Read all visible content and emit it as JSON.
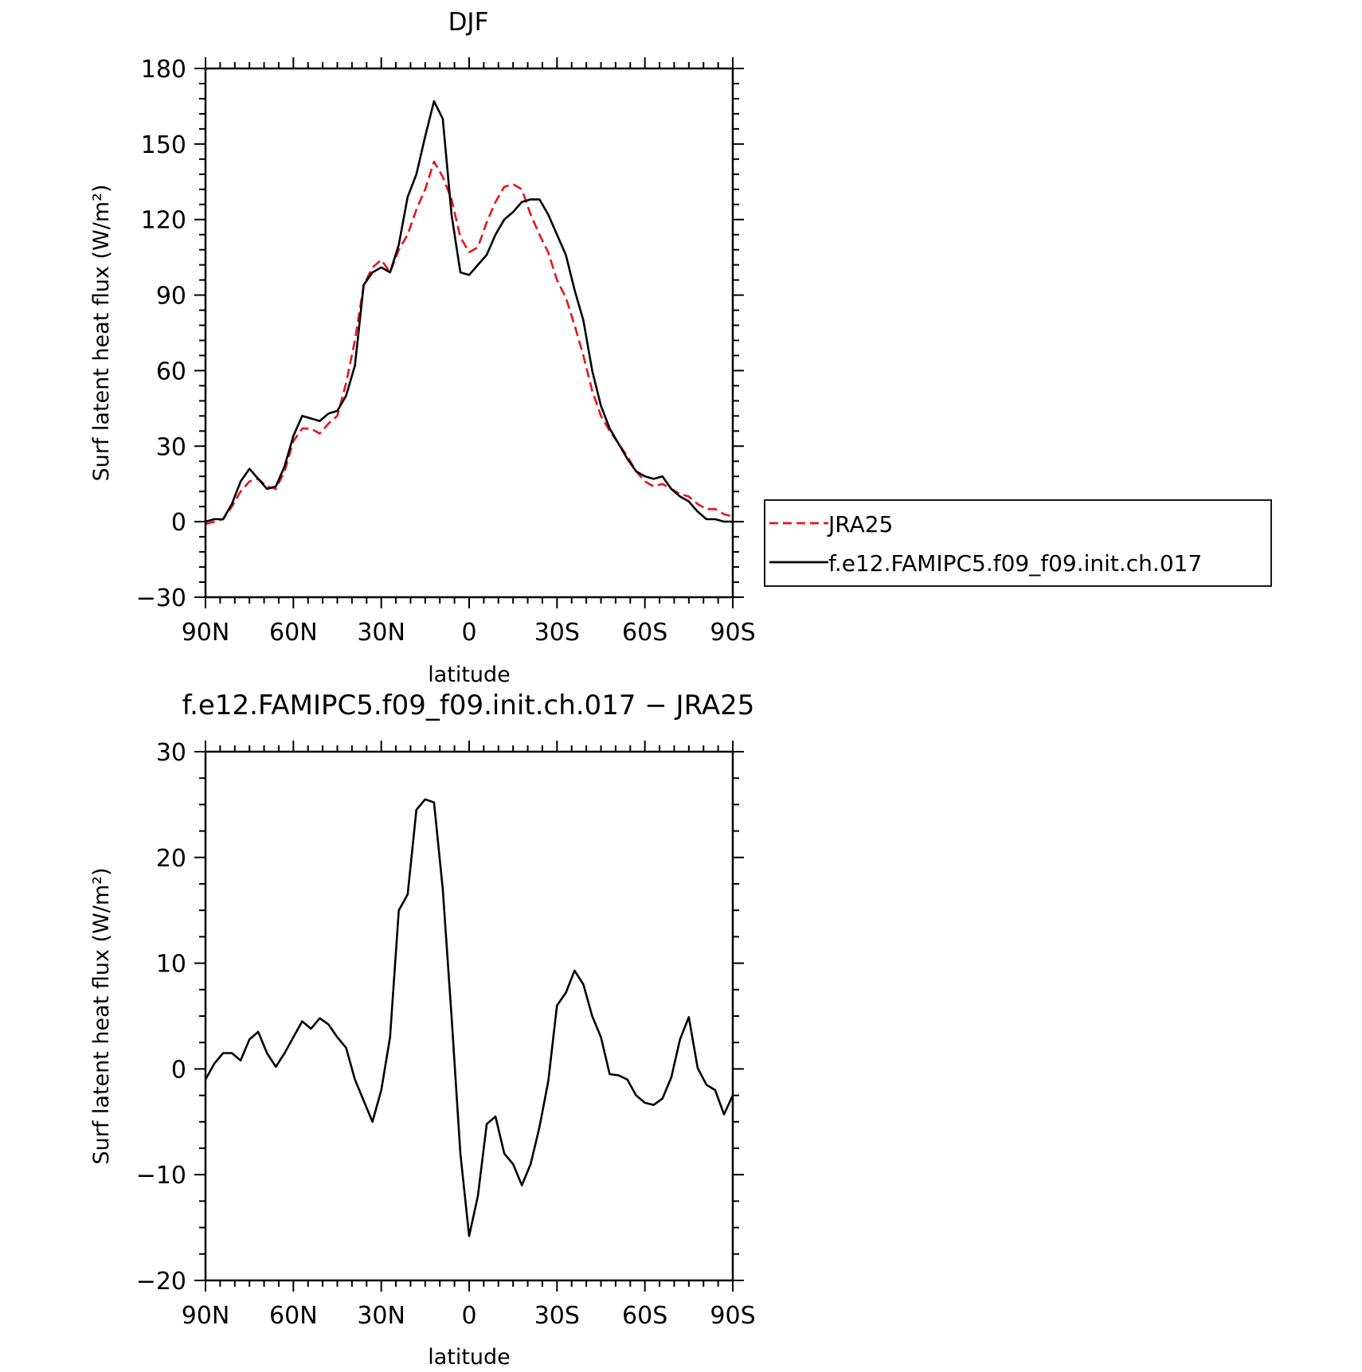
{
  "chart_data": [
    {
      "type": "line",
      "title": "DJF",
      "xlabel": "latitude",
      "ylabel": "Surf latent heat flux (W/m²)",
      "xlim": [
        -90,
        90
      ],
      "ylim": [
        -30,
        180
      ],
      "x_ticks": [
        -90,
        -60,
        -30,
        0,
        30,
        60,
        90
      ],
      "x_tick_labels": [
        "90N",
        "60N",
        "30N",
        "0",
        "30S",
        "60S",
        "90S"
      ],
      "y_ticks": [
        -30,
        0,
        30,
        60,
        90,
        120,
        150,
        180
      ],
      "y_tick_labels": [
        "−30",
        "0",
        "30",
        "60",
        "90",
        "120",
        "150",
        "180"
      ],
      "legend_position": "outside-right",
      "series": [
        {
          "name": "JRA25",
          "color": "#e8141c",
          "dash": "dashed",
          "x": [
            -90,
            -87,
            -84,
            -81,
            -78,
            -75,
            -72,
            -69,
            -66,
            -63,
            -60,
            -57,
            -54,
            -51,
            -48,
            -45,
            -42,
            -39,
            -36,
            -33,
            -30,
            -27,
            -24,
            -21,
            -18,
            -15,
            -12,
            -9,
            -6,
            -3,
            0,
            3,
            6,
            9,
            12,
            15,
            18,
            21,
            24,
            27,
            30,
            33,
            36,
            39,
            42,
            45,
            48,
            51,
            54,
            57,
            60,
            63,
            66,
            69,
            72,
            75,
            78,
            81,
            84,
            87,
            90
          ],
          "values": [
            -1,
            0,
            1,
            6,
            12,
            16,
            17,
            14,
            13,
            20,
            32,
            37,
            37,
            35,
            39,
            42,
            55,
            72,
            94,
            101,
            104,
            99,
            108,
            114,
            124,
            132,
            143,
            137,
            128,
            113,
            107,
            109,
            119,
            127,
            133,
            134,
            132,
            122,
            114,
            107,
            96,
            89,
            78,
            66,
            52,
            42,
            36,
            31,
            26,
            20,
            16,
            14,
            15,
            13,
            11,
            10,
            7,
            5,
            5,
            3,
            2
          ]
        },
        {
          "name": "f.e12.FAMIPC5.f09_f09.init.ch.017",
          "color": "#000000",
          "dash": "solid",
          "x": [
            -90,
            -87,
            -84,
            -81,
            -78,
            -75,
            -72,
            -69,
            -66,
            -63,
            -60,
            -57,
            -54,
            -51,
            -48,
            -45,
            -42,
            -39,
            -36,
            -33,
            -30,
            -27,
            -24,
            -21,
            -18,
            -15,
            -12,
            -9,
            -6,
            -3,
            0,
            3,
            6,
            9,
            12,
            15,
            18,
            21,
            24,
            27,
            30,
            33,
            36,
            39,
            42,
            45,
            48,
            51,
            54,
            57,
            60,
            63,
            66,
            69,
            72,
            75,
            78,
            81,
            84,
            87,
            90
          ],
          "values": [
            0,
            1,
            1,
            7,
            16,
            21,
            17,
            13,
            14,
            22,
            34,
            42,
            41,
            40,
            43,
            44,
            50,
            62,
            94,
            99,
            101,
            99,
            110,
            129,
            138,
            153,
            167,
            160,
            122,
            99,
            98,
            102,
            106,
            114,
            120,
            123,
            127,
            128,
            128,
            122,
            114,
            106,
            92,
            80,
            60,
            46,
            37,
            31,
            25,
            20,
            18,
            17,
            18,
            13,
            10,
            8,
            4,
            1,
            1,
            0,
            0
          ]
        }
      ]
    },
    {
      "type": "line",
      "title": "f.e12.FAMIPC5.f09_f09.init.ch.017 − JRA25",
      "xlabel": "latitude",
      "ylabel": "Surf latent heat flux (W/m²)",
      "xlim": [
        -90,
        90
      ],
      "ylim": [
        -20,
        30
      ],
      "x_ticks": [
        -90,
        -60,
        -30,
        0,
        30,
        60,
        90
      ],
      "x_tick_labels": [
        "90N",
        "60N",
        "30N",
        "0",
        "30S",
        "60S",
        "90S"
      ],
      "y_ticks": [
        -20,
        -10,
        0,
        10,
        20,
        30
      ],
      "y_tick_labels": [
        "−20",
        "−10",
        "0",
        "10",
        "20",
        "30"
      ],
      "series": [
        {
          "color": "#000000",
          "dash": "solid",
          "x": [
            -90,
            -87,
            -84,
            -81,
            -78,
            -75,
            -72,
            -69,
            -66,
            -63,
            -60,
            -57,
            -54,
            -51,
            -48,
            -45,
            -42,
            -39,
            -36,
            -33,
            -30,
            -27,
            -24,
            -21,
            -18,
            -15,
            -12,
            -9,
            -6,
            -3,
            0,
            3,
            6,
            9,
            12,
            15,
            18,
            21,
            24,
            27,
            30,
            33,
            36,
            39,
            42,
            45,
            48,
            51,
            54,
            57,
            60,
            63,
            66,
            69,
            72,
            75,
            78,
            81,
            84,
            87,
            90
          ],
          "values": [
            -1,
            0.5,
            1.5,
            1.5,
            0.8,
            2.8,
            3.5,
            1.5,
            0.2,
            1.5,
            3,
            4.5,
            3.8,
            4.8,
            4.2,
            3,
            2,
            -1,
            -3,
            -5,
            -2,
            3,
            15,
            16.5,
            24.5,
            25.5,
            25.2,
            17,
            5,
            -8,
            -15.8,
            -12,
            -5.2,
            -4.5,
            -8,
            -9,
            -11,
            -9,
            -5.5,
            -1.2,
            6,
            7.2,
            9.3,
            8,
            5,
            3,
            -0.5,
            -0.6,
            -1,
            -2.5,
            -3.2,
            -3.4,
            -2.8,
            -0.8,
            2.8,
            4.9,
            0.1,
            -1.5,
            -2,
            -4.3,
            -2.5
          ]
        }
      ]
    }
  ]
}
